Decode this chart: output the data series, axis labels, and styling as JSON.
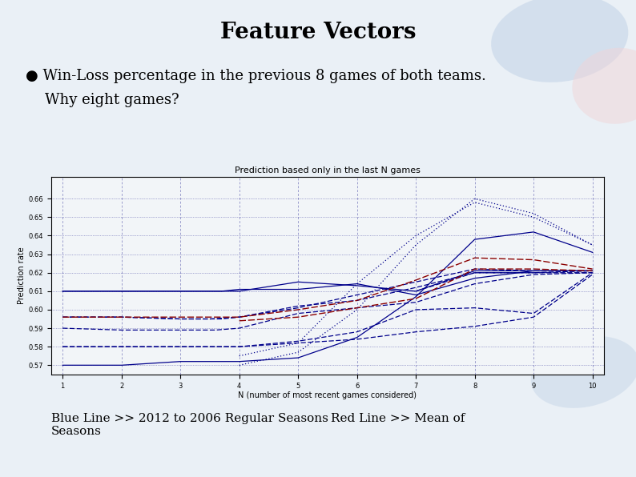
{
  "title": "Feature Vectors",
  "bullet_text_line1": "● Win-Loss percentage in the previous 8 games of both teams.",
  "bullet_text_line2": "Why eight games?",
  "chart_title": "Prediction based only in the last N games",
  "xlabel": "N (number of most recent games considered)",
  "ylabel": "Prediction rate",
  "xlim": [
    0.8,
    10.2
  ],
  "ylim": [
    0.565,
    0.672
  ],
  "yticks": [
    0.57,
    0.58,
    0.59,
    0.6,
    0.61,
    0.62,
    0.63,
    0.64,
    0.65,
    0.66
  ],
  "xticks": [
    1,
    2,
    3,
    4,
    5,
    6,
    7,
    8,
    9,
    10
  ],
  "bg_color": "#eaf0f6",
  "chart_bg": "#f2f5f8",
  "blue_color": "#00008B",
  "red_color": "#8B0000",
  "blue_lines": [
    {
      "style": "-",
      "lw": 0.9,
      "pts": [
        [
          1,
          0.61
        ],
        [
          2,
          0.61
        ],
        [
          3,
          0.61
        ],
        [
          3.5,
          0.61
        ],
        [
          4,
          0.61
        ],
        [
          5,
          0.615
        ],
        [
          6,
          0.613
        ],
        [
          7,
          0.61
        ],
        [
          8,
          0.621
        ],
        [
          9,
          0.621
        ],
        [
          10,
          0.621
        ]
      ]
    },
    {
      "style": "-",
      "lw": 0.9,
      "pts": [
        [
          1,
          0.61
        ],
        [
          2,
          0.61
        ],
        [
          3,
          0.61
        ],
        [
          3.7,
          0.61
        ],
        [
          4,
          0.611
        ],
        [
          5,
          0.611
        ],
        [
          6,
          0.614
        ],
        [
          7,
          0.608
        ],
        [
          8,
          0.617
        ],
        [
          9,
          0.621
        ],
        [
          10,
          0.621
        ]
      ]
    },
    {
      "style": "--",
      "lw": 0.9,
      "pts": [
        [
          1,
          0.596
        ],
        [
          2,
          0.596
        ],
        [
          3,
          0.595
        ],
        [
          3.7,
          0.595
        ],
        [
          4,
          0.596
        ],
        [
          5,
          0.601
        ],
        [
          6,
          0.608
        ],
        [
          7,
          0.615
        ],
        [
          8,
          0.622
        ],
        [
          9,
          0.621
        ],
        [
          10,
          0.621
        ]
      ]
    },
    {
      "style": "--",
      "lw": 0.9,
      "pts": [
        [
          1,
          0.596
        ],
        [
          2,
          0.596
        ],
        [
          3,
          0.595
        ],
        [
          3.5,
          0.595
        ],
        [
          4,
          0.596
        ],
        [
          5,
          0.602
        ],
        [
          6,
          0.605
        ],
        [
          7,
          0.612
        ],
        [
          8,
          0.62
        ],
        [
          9,
          0.62
        ],
        [
          10,
          0.621
        ]
      ]
    },
    {
      "style": "--",
      "lw": 0.9,
      "pts": [
        [
          1,
          0.59
        ],
        [
          2,
          0.589
        ],
        [
          3,
          0.589
        ],
        [
          3.6,
          0.589
        ],
        [
          4,
          0.59
        ],
        [
          5,
          0.598
        ],
        [
          6,
          0.601
        ],
        [
          7,
          0.604
        ],
        [
          8,
          0.614
        ],
        [
          9,
          0.619
        ],
        [
          10,
          0.62
        ]
      ]
    },
    {
      "style": "--",
      "lw": 0.9,
      "pts": [
        [
          1,
          0.58
        ],
        [
          2,
          0.58
        ],
        [
          3,
          0.58
        ],
        [
          3.5,
          0.58
        ],
        [
          4,
          0.58
        ],
        [
          5,
          0.583
        ],
        [
          6,
          0.588
        ],
        [
          7,
          0.6
        ],
        [
          8,
          0.601
        ],
        [
          9,
          0.598
        ],
        [
          10,
          0.62
        ]
      ]
    },
    {
      "style": "--",
      "lw": 0.9,
      "pts": [
        [
          1,
          0.58
        ],
        [
          2,
          0.58
        ],
        [
          3,
          0.58
        ],
        [
          3.5,
          0.58
        ],
        [
          4,
          0.58
        ],
        [
          5,
          0.582
        ],
        [
          6,
          0.584
        ],
        [
          7,
          0.588
        ],
        [
          8,
          0.591
        ],
        [
          9,
          0.596
        ],
        [
          10,
          0.619
        ]
      ]
    },
    {
      "style": "-",
      "lw": 0.9,
      "pts": [
        [
          1,
          0.57
        ],
        [
          2,
          0.57
        ],
        [
          3,
          0.572
        ],
        [
          4,
          0.572
        ],
        [
          5,
          0.574
        ],
        [
          6,
          0.585
        ],
        [
          7,
          0.607
        ],
        [
          8,
          0.638
        ],
        [
          9,
          0.642
        ],
        [
          10,
          0.631
        ]
      ]
    },
    {
      "style": ":",
      "lw": 0.9,
      "pts": [
        [
          4,
          0.575
        ],
        [
          5,
          0.582
        ],
        [
          6,
          0.614
        ],
        [
          7,
          0.64
        ],
        [
          8,
          0.658
        ],
        [
          9,
          0.65
        ],
        [
          10,
          0.635
        ]
      ]
    },
    {
      "style": ":",
      "lw": 0.9,
      "pts": [
        [
          4,
          0.57
        ],
        [
          5,
          0.577
        ],
        [
          6,
          0.6
        ],
        [
          7,
          0.635
        ],
        [
          8,
          0.66
        ],
        [
          9,
          0.652
        ],
        [
          10,
          0.635
        ]
      ]
    },
    {
      "style": "--",
      "lw": 0.9,
      "pts": [
        [
          7,
          0.61
        ],
        [
          8,
          0.62
        ],
        [
          9,
          0.62
        ],
        [
          10,
          0.62
        ]
      ]
    }
  ],
  "red_lines": [
    {
      "style": "--",
      "lw": 1.0,
      "pts": [
        [
          1,
          0.596
        ],
        [
          2,
          0.596
        ],
        [
          3,
          0.596
        ],
        [
          3.5,
          0.596
        ],
        [
          4,
          0.596
        ],
        [
          5,
          0.6
        ],
        [
          6,
          0.605
        ],
        [
          7,
          0.616
        ],
        [
          8,
          0.628
        ],
        [
          9,
          0.627
        ],
        [
          10,
          0.622
        ]
      ]
    },
    {
      "style": "--",
      "lw": 1.0,
      "pts": [
        [
          4,
          0.594
        ],
        [
          5,
          0.596
        ],
        [
          6,
          0.601
        ],
        [
          7,
          0.606
        ],
        [
          8,
          0.622
        ],
        [
          9,
          0.622
        ],
        [
          10,
          0.621
        ]
      ]
    }
  ],
  "footnote_left": "Blue Line >> 2012 to 2006 Regular Seasons\nSeasons",
  "footnote_right": "Red Line >> Mean of"
}
